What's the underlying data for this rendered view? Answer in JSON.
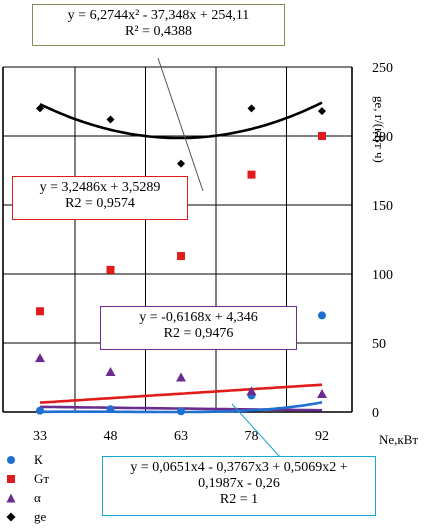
{
  "chart_data": {
    "type": "scatter",
    "x_categories": [
      "33",
      "48",
      "63",
      "78",
      "92"
    ],
    "ylim": [
      0,
      250
    ],
    "y_ticks": [
      "0",
      "50",
      "100",
      "150",
      "200",
      "250"
    ],
    "xlabel": "Ne,кВт",
    "ylabel": "ge, г/(кВт ч)",
    "grid": true,
    "legend_placement": "bottom-left",
    "series": [
      {
        "name": "К",
        "marker": "circle",
        "color": "#1f6fd1",
        "values": [
          1,
          2,
          0.5,
          12,
          70
        ]
      },
      {
        "name": "Gт",
        "marker": "square",
        "color": "#e01b1b",
        "values": [
          73,
          103,
          113,
          172,
          200
        ]
      },
      {
        "name": "α",
        "marker": "triangle",
        "color": "#6a2d8f",
        "values": [
          39,
          29,
          25,
          15,
          13
        ]
      },
      {
        "name": "ge",
        "marker": "diamond",
        "color": "#000000",
        "values": [
          220,
          212,
          180,
          220,
          218
        ]
      }
    ],
    "trendlines": [
      {
        "series": "ge",
        "kind": "polynomial",
        "color": "#000000",
        "coefficients": [
          254.11,
          -37.348,
          6.2744
        ]
      },
      {
        "series": "Gт",
        "kind": "linear",
        "color": "#e01b1b",
        "coefficients": [
          3.5289,
          3.2486
        ]
      },
      {
        "series": "α",
        "kind": "linear",
        "color": "#6a2d8f",
        "coefficients": [
          4.346,
          -0.6168
        ]
      },
      {
        "series": "К",
        "kind": "polynomial",
        "color": "#1f6fd1",
        "coefficients": [
          -0.26,
          0.1987,
          0.5069,
          -0.3767,
          0.0651
        ]
      }
    ],
    "annotations": {
      "ge": {
        "eq": "y = 6,2744x² - 37,348x + 254,11",
        "r2": "R² = 0,4388",
        "border": "#8c8c5a"
      },
      "gt": {
        "eq": "y = 3,2486x + 3,5289",
        "r2": "R2 = 0,9574",
        "border": "#e01b1b"
      },
      "a": {
        "eq": "y = -0,6168x + 4,346",
        "r2": "R2 = 0,9476",
        "border": "#6a2d8f"
      },
      "k": {
        "eq1": "y = 0,0651x4 - 0,3767x3 + 0,5069x2 +",
        "eq2": "0,1987x - 0,26",
        "r2": "R2 = 1",
        "border": "#19a6d9"
      }
    }
  }
}
